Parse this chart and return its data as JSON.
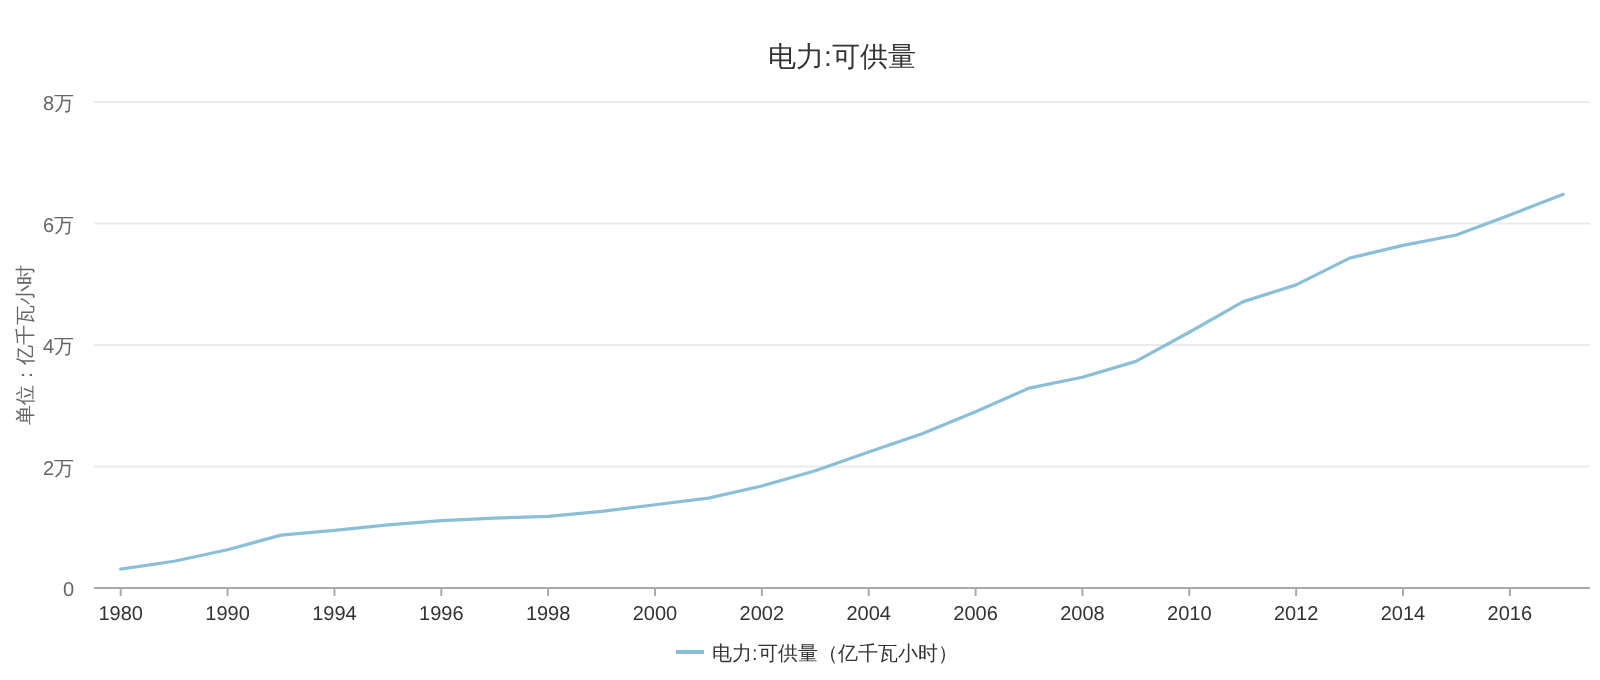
{
  "chart_data": {
    "type": "line",
    "title": "电力:可供量",
    "ylabel": "单位：亿千瓦小时",
    "categories": [
      "1980",
      null,
      "1990",
      null,
      "1994",
      null,
      "1996",
      null,
      "1998",
      null,
      "2000",
      null,
      "2002",
      null,
      "2004",
      null,
      "2006",
      null,
      "2008",
      null,
      "2010",
      null,
      "2012",
      null,
      "2014",
      null,
      "2016",
      null
    ],
    "series": [
      {
        "name": "电力:可供量（亿千瓦小时）",
        "color": "#8bbfd6",
        "values": [
          0.31,
          0.44,
          0.63,
          0.87,
          0.95,
          1.04,
          1.11,
          1.15,
          1.18,
          1.26,
          1.37,
          1.48,
          1.68,
          1.93,
          2.24,
          2.54,
          2.9,
          3.29,
          3.47,
          3.73,
          4.21,
          4.71,
          4.99,
          5.43,
          5.64,
          5.81,
          6.14,
          6.48
        ]
      }
    ],
    "ylim": [
      0,
      8
    ],
    "yticks": [
      0,
      {
        "value": 2,
        "label": "2万"
      },
      {
        "value": 4,
        "label": "4万"
      },
      {
        "value": 6,
        "label": "6万"
      },
      {
        "value": 8,
        "label": "8万"
      }
    ],
    "grid": "y",
    "legend": "bottom"
  }
}
